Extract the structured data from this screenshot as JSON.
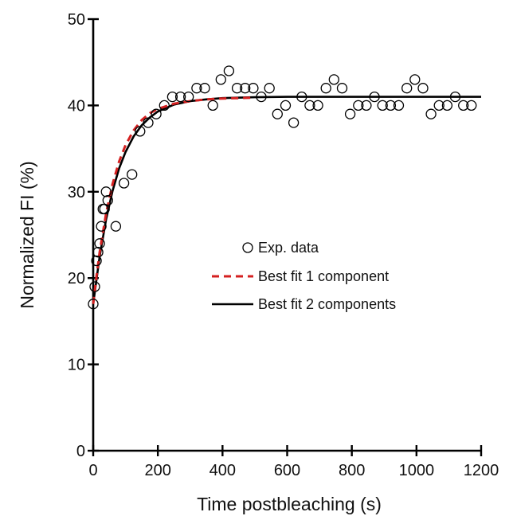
{
  "chart_data": {
    "type": "scatter",
    "title": "",
    "xlabel": "Time postbleaching (s)",
    "ylabel": "Normalized FI (%)",
    "xlim": [
      0,
      1200
    ],
    "ylim": [
      0,
      50
    ],
    "xticks": [
      0,
      200,
      400,
      600,
      800,
      1000,
      1200
    ],
    "yticks": [
      0,
      10,
      20,
      30,
      40,
      50
    ],
    "grid": false,
    "legend_position": "center",
    "colors": {
      "data": "#000000",
      "fit1": "#d42020",
      "fit2": "#000000"
    },
    "series": [
      {
        "name": "Exp. data",
        "kind": "scatter",
        "marker": "open-circle",
        "x": [
          0,
          5,
          10,
          15,
          20,
          25,
          30,
          35,
          40,
          45,
          70,
          95,
          120,
          145,
          170,
          195,
          220,
          245,
          270,
          295,
          320,
          345,
          370,
          395,
          420,
          445,
          470,
          495,
          520,
          545,
          570,
          595,
          620,
          645,
          670,
          695,
          720,
          745,
          770,
          795,
          820,
          845,
          870,
          895,
          920,
          945,
          970,
          995,
          1020,
          1045,
          1070,
          1095,
          1120,
          1145,
          1170
        ],
        "y": [
          17,
          19,
          22,
          23,
          24,
          26,
          28,
          28,
          30,
          29,
          26,
          31,
          32,
          37,
          38,
          39,
          40,
          41,
          41,
          41,
          42,
          42,
          40,
          43,
          44,
          42,
          42,
          42,
          41,
          42,
          39,
          40,
          38,
          41,
          40,
          40,
          42,
          43,
          42,
          39,
          40,
          40,
          41,
          40,
          40,
          40,
          42,
          43,
          42,
          39,
          40,
          40,
          41,
          40,
          40
        ]
      },
      {
        "name": "Best fit 1 component",
        "kind": "line",
        "dash": "dashed",
        "x": [
          0,
          10,
          20,
          40,
          60,
          80,
          100,
          125,
          150,
          175,
          200,
          250,
          300,
          350,
          400,
          450,
          500
        ],
        "y": [
          17,
          20.2,
          23.0,
          27.5,
          30.9,
          33.5,
          35.4,
          37.1,
          38.3,
          39.1,
          39.6,
          40.2,
          40.5,
          40.7,
          40.8,
          40.85,
          40.9
        ]
      },
      {
        "name": "Best fit 2 components",
        "kind": "line",
        "dash": "solid",
        "x": [
          0,
          10,
          20,
          40,
          60,
          80,
          100,
          125,
          150,
          175,
          200,
          250,
          300,
          350,
          400,
          500,
          600,
          800,
          1000,
          1200
        ],
        "y": [
          17,
          19.8,
          22.5,
          26.8,
          30.1,
          32.7,
          34.6,
          36.4,
          37.7,
          38.6,
          39.3,
          40.1,
          40.5,
          40.7,
          40.85,
          40.95,
          41,
          41,
          41,
          41
        ]
      }
    ]
  }
}
